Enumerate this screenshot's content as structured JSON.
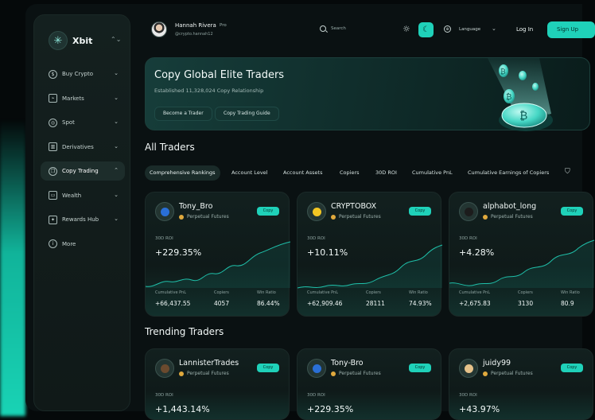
{
  "brand": {
    "name": "Xbit"
  },
  "sidebar": {
    "items": [
      {
        "label": "Buy Crypto",
        "icon": "dollar-coin-icon",
        "glyph": "$",
        "active": false
      },
      {
        "label": "Markets",
        "icon": "markets-chart-icon",
        "glyph": "⌁",
        "active": false
      },
      {
        "label": "Spot",
        "icon": "spot-target-icon",
        "glyph": "◎",
        "active": false
      },
      {
        "label": "Derivatives",
        "icon": "derivatives-bars-icon",
        "glyph": "▥",
        "active": false
      },
      {
        "label": "Copy Trading",
        "icon": "copy-trading-icon",
        "glyph": "❐",
        "active": true
      },
      {
        "label": "Wealth",
        "icon": "wallet-icon",
        "glyph": "▭",
        "active": false
      },
      {
        "label": "Rewards Hub",
        "icon": "gift-icon",
        "glyph": "✦",
        "active": false
      },
      {
        "label": "More",
        "icon": "info-icon",
        "glyph": "i",
        "active": false
      }
    ]
  },
  "header": {
    "user_name": "Hannah Rivera",
    "user_badge": "Pro",
    "user_handle": "@crypto.hannah12",
    "search_label": "Search",
    "language_label": "Language",
    "login_label": "Log In",
    "signup_label": "Sign Up"
  },
  "banner": {
    "title": "Copy Global Elite Traders",
    "subtitle": "Established 11,328,024 Copy Relationship",
    "btn_become": "Become a Trader",
    "btn_guide": "Copy Trading Guide"
  },
  "sections": {
    "all_traders": "All Traders",
    "trending_traders": "Trending Traders"
  },
  "tabs": [
    "Comprehensive Rankings",
    "Account Level",
    "Account Assets",
    "Copiers",
    "30D ROI",
    "Cumulative PnL",
    "Cumulative Earnings of Copiers"
  ],
  "card_labels": {
    "tag": "Perpetual Futures",
    "copy": "Copy",
    "roi_label": "30D ROI",
    "pnl_label": "Cumulative PnL",
    "copiers_label": "Copiers",
    "winratio_label": "Win Ratio"
  },
  "all_traders": [
    {
      "name": "Tony_Bro",
      "roi": "+229.35%",
      "pnl": "+66,437.55",
      "copiers": "4057",
      "win": "86.44%",
      "avatar_color": "#2a6fd6"
    },
    {
      "name": "CRYPTOBOX",
      "roi": "+10.11%",
      "pnl": "+62,909.46",
      "copiers": "28111",
      "win": "74.93%",
      "avatar_color": "#f3c623"
    },
    {
      "name": "alphabot_long",
      "roi": "+4.28%",
      "pnl": "+2,675.83",
      "copiers": "3130",
      "win": "80.9",
      "avatar_color": "#1c1c1c"
    }
  ],
  "trending_traders": [
    {
      "name": "LannisterTrades",
      "roi": "+1,443.14%",
      "avatar_color": "#6b4a2e"
    },
    {
      "name": "Tony-Bro",
      "roi": "+229.35%",
      "avatar_color": "#2a6fd6"
    },
    {
      "name": "juidy99",
      "roi": "+43.97%",
      "avatar_color": "#e6c28a"
    }
  ]
}
